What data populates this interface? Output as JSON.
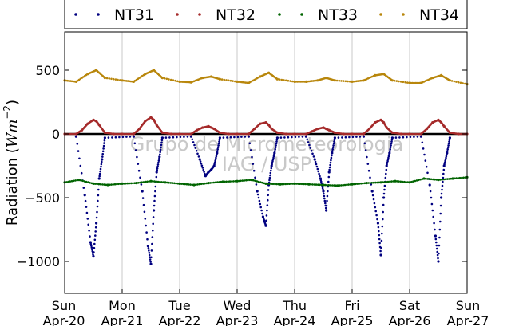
{
  "chart_data": {
    "type": "scatter",
    "title": "",
    "xlabel": "",
    "ylabel": "Radiation (Wm⁻²)",
    "ylim": [
      -1250,
      800
    ],
    "xlim": [
      0,
      7
    ],
    "yticks": [
      -1000,
      -500,
      0,
      500
    ],
    "ytick_labels": [
      "−1000",
      "−500",
      "0",
      "500"
    ],
    "xticks": [
      {
        "day": "Sun",
        "date": "Apr-20"
      },
      {
        "day": "Mon",
        "date": "Apr-21"
      },
      {
        "day": "Tue",
        "date": "Apr-22"
      },
      {
        "day": "Wed",
        "date": "Apr-23"
      },
      {
        "day": "Thu",
        "date": "Apr-24"
      },
      {
        "day": "Fri",
        "date": "Apr-25"
      },
      {
        "day": "Sat",
        "date": "Apr-26"
      },
      {
        "day": "Sun",
        "date": "Apr-27"
      }
    ],
    "grid": "vertical",
    "legend": "top",
    "watermark": [
      "Grupo de Micrometeorologia",
      "IAG / USP"
    ],
    "series": [
      {
        "name": "NT31",
        "color": "#000080",
        "x": [
          0.2,
          0.35,
          0.45,
          0.5,
          0.55,
          0.6,
          0.65,
          0.7,
          1.2,
          1.35,
          1.45,
          1.5,
          1.55,
          1.6,
          1.65,
          1.7,
          2.2,
          2.35,
          2.45,
          2.5,
          2.55,
          2.6,
          2.65,
          2.7,
          3.2,
          3.35,
          3.45,
          3.5,
          3.55,
          3.6,
          3.65,
          3.7,
          4.2,
          4.35,
          4.45,
          4.5,
          4.55,
          4.6,
          4.65,
          4.7,
          5.2,
          5.35,
          5.45,
          5.5,
          5.55,
          5.6,
          5.65,
          5.7,
          6.2,
          6.35,
          6.45,
          6.5,
          6.55,
          6.6,
          6.65,
          6.7
        ],
        "y": [
          -20,
          -480,
          -850,
          -960,
          -700,
          -350,
          -200,
          -30,
          -20,
          -450,
          -880,
          -1020,
          -600,
          -300,
          -180,
          -30,
          -20,
          -200,
          -330,
          -300,
          -280,
          -250,
          -150,
          -30,
          -20,
          -450,
          -650,
          -720,
          -400,
          -250,
          -150,
          -30,
          -20,
          -200,
          -350,
          -450,
          -600,
          -300,
          -150,
          -30,
          -20,
          -450,
          -700,
          -950,
          -500,
          -250,
          -150,
          -30,
          -20,
          -400,
          -800,
          -1000,
          -500,
          -250,
          -150,
          -30
        ]
      },
      {
        "name": "NT32",
        "color": "#a52a2a",
        "x": [
          0.0,
          0.2,
          0.3,
          0.4,
          0.5,
          0.55,
          0.6,
          0.7,
          0.85,
          1.0,
          1.2,
          1.3,
          1.4,
          1.5,
          1.55,
          1.6,
          1.7,
          1.85,
          2.0,
          2.2,
          2.3,
          2.4,
          2.5,
          2.55,
          2.6,
          2.7,
          2.85,
          3.0,
          3.2,
          3.3,
          3.4,
          3.5,
          3.55,
          3.6,
          3.7,
          3.85,
          4.0,
          4.2,
          4.3,
          4.4,
          4.5,
          4.55,
          4.6,
          4.7,
          4.85,
          5.0,
          5.2,
          5.3,
          5.4,
          5.5,
          5.55,
          5.6,
          5.7,
          5.85,
          6.0,
          6.2,
          6.3,
          6.4,
          6.5,
          6.55,
          6.6,
          6.7,
          6.85,
          7.0
        ],
        "y": [
          0,
          0,
          30,
          80,
          110,
          100,
          70,
          10,
          0,
          0,
          0,
          40,
          100,
          130,
          110,
          70,
          10,
          0,
          0,
          0,
          30,
          50,
          60,
          50,
          40,
          10,
          0,
          0,
          0,
          40,
          80,
          90,
          70,
          40,
          10,
          0,
          0,
          0,
          20,
          40,
          50,
          40,
          30,
          10,
          0,
          0,
          0,
          40,
          90,
          110,
          90,
          50,
          10,
          0,
          0,
          0,
          40,
          90,
          110,
          90,
          60,
          10,
          0,
          0
        ]
      },
      {
        "name": "NT33",
        "color": "#006400",
        "x": [
          0.0,
          0.25,
          0.5,
          0.75,
          1.0,
          1.25,
          1.5,
          1.75,
          2.0,
          2.25,
          2.5,
          2.75,
          3.0,
          3.25,
          3.5,
          3.75,
          4.0,
          4.25,
          4.5,
          4.75,
          5.0,
          5.25,
          5.5,
          5.75,
          6.0,
          6.25,
          6.5,
          6.75,
          7.0
        ],
        "y": [
          -380,
          -360,
          -390,
          -400,
          -390,
          -385,
          -370,
          -380,
          -390,
          -400,
          -385,
          -375,
          -370,
          -360,
          -390,
          -395,
          -390,
          -395,
          -400,
          -405,
          -395,
          -385,
          -380,
          -370,
          -380,
          -350,
          -360,
          -350,
          -340
        ]
      },
      {
        "name": "NT34",
        "color": "#b8860b",
        "x": [
          0.0,
          0.2,
          0.4,
          0.55,
          0.7,
          1.0,
          1.2,
          1.4,
          1.55,
          1.7,
          2.0,
          2.2,
          2.4,
          2.55,
          2.7,
          3.0,
          3.2,
          3.4,
          3.55,
          3.7,
          4.0,
          4.2,
          4.4,
          4.55,
          4.7,
          5.0,
          5.2,
          5.4,
          5.55,
          5.7,
          6.0,
          6.2,
          6.4,
          6.55,
          6.7,
          7.0
        ],
        "y": [
          420,
          410,
          470,
          500,
          440,
          420,
          410,
          470,
          500,
          440,
          410,
          405,
          440,
          450,
          430,
          410,
          400,
          450,
          480,
          430,
          410,
          410,
          420,
          440,
          420,
          410,
          420,
          460,
          470,
          420,
          400,
          400,
          440,
          460,
          420,
          390
        ]
      }
    ]
  }
}
